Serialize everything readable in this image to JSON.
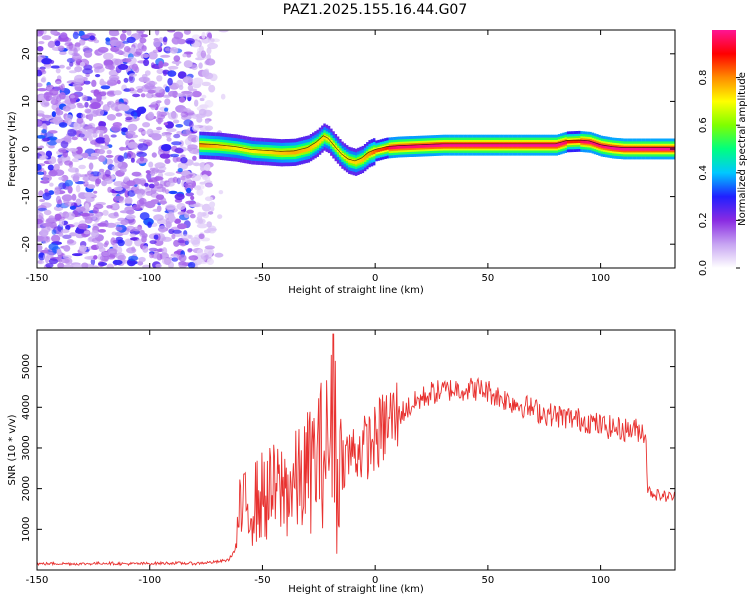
{
  "title": "PAZ1.2025.155.16.44.G07",
  "chart_data": [
    {
      "type": "heatmap",
      "xlabel": "Height of straight line (km)",
      "ylabel": "Frequency (Hz)",
      "xlim": [
        -150,
        133
      ],
      "ylim": [
        -25,
        25
      ],
      "xticks": [
        -150,
        -100,
        -50,
        0,
        50,
        100
      ],
      "yticks": [
        -20,
        -10,
        0,
        10,
        20
      ],
      "grid": false,
      "noise_region_x": [
        -150,
        -72
      ],
      "colorbar": {
        "label": "Normalized spectral amplitude",
        "ticks": [
          0.0,
          0.2,
          0.4,
          0.6,
          0.8
        ],
        "range": [
          0,
          1
        ],
        "colormap": [
          "#ffffff",
          "#c7a4f2",
          "#8a2be2",
          "#2020ff",
          "#00c8ff",
          "#00ff7f",
          "#7fff00",
          "#ffff00",
          "#ff8c00",
          "#ff0000",
          "#ff1493"
        ]
      },
      "ridge": {
        "x": [
          -78,
          -70,
          -62,
          -55,
          -48,
          -42,
          -36,
          -30,
          -26,
          -23,
          -21,
          -18,
          -15,
          -12,
          -9,
          -6,
          -3,
          0,
          5,
          10,
          20,
          30,
          40,
          50,
          60,
          70,
          80,
          85,
          90,
          95,
          100,
          105,
          110,
          115,
          120,
          125,
          133
        ],
        "y": [
          0.8,
          0.6,
          0.2,
          -0.4,
          -0.6,
          -0.8,
          -0.7,
          0.0,
          1.2,
          2.5,
          2.0,
          0.3,
          -1.3,
          -2.4,
          -2.8,
          -2.2,
          -1.0,
          -0.4,
          0.2,
          0.4,
          0.6,
          0.8,
          0.8,
          0.8,
          0.8,
          0.8,
          0.8,
          1.5,
          1.6,
          1.4,
          0.6,
          0.2,
          0.0,
          0.0,
          0.0,
          0.0,
          0.0
        ],
        "amp": [
          0.7,
          0.6,
          0.5,
          0.5,
          0.55,
          0.6,
          0.65,
          0.6,
          0.55,
          0.55,
          0.5,
          0.5,
          0.5,
          0.55,
          0.55,
          0.6,
          0.7,
          0.8,
          0.9,
          0.95,
          0.95,
          1.0,
          1.0,
          1.0,
          1.0,
          1.0,
          1.0,
          0.9,
          0.9,
          0.95,
          0.95,
          1.0,
          1.0,
          1.0,
          1.0,
          1.0,
          1.0
        ]
      }
    },
    {
      "type": "line",
      "xlabel": "Height of straight line (km)",
      "ylabel": "SNR (10 * v/v)",
      "xlim": [
        -150,
        133
      ],
      "ylim": [
        0,
        5900
      ],
      "xticks": [
        -150,
        -100,
        -50,
        0,
        50,
        100
      ],
      "yticks": [
        1000,
        2000,
        3000,
        4000,
        5000
      ],
      "grid": false,
      "color": "#e8312f",
      "series": [
        {
          "x": [
            -150,
            -140,
            -130,
            -120,
            -110,
            -100,
            -90,
            -80,
            -70,
            -65,
            -62,
            -60,
            -55,
            -50,
            -45,
            -40,
            -35,
            -30,
            -25,
            -20,
            -18,
            -17,
            -15,
            -10,
            -5,
            0,
            5,
            10,
            15,
            20,
            25,
            30,
            35,
            40,
            45,
            50,
            55,
            60,
            65,
            70,
            75,
            80,
            85,
            90,
            95,
            100,
            105,
            110,
            115,
            120,
            121,
            125,
            130,
            133
          ],
          "y": [
            150,
            160,
            150,
            170,
            150,
            160,
            170,
            160,
            200,
            250,
            500,
            1400,
            1600,
            1800,
            1900,
            2000,
            2100,
            2400,
            2800,
            3100,
            4000,
            2600,
            2700,
            2900,
            3000,
            3200,
            3600,
            3800,
            4000,
            4200,
            4350,
            4400,
            4450,
            4450,
            4450,
            4400,
            4250,
            4150,
            4050,
            3950,
            3850,
            3800,
            3750,
            3700,
            3650,
            3550,
            3500,
            3450,
            3450,
            3400,
            1950,
            1850,
            1800,
            1800
          ]
        }
      ]
    }
  ]
}
